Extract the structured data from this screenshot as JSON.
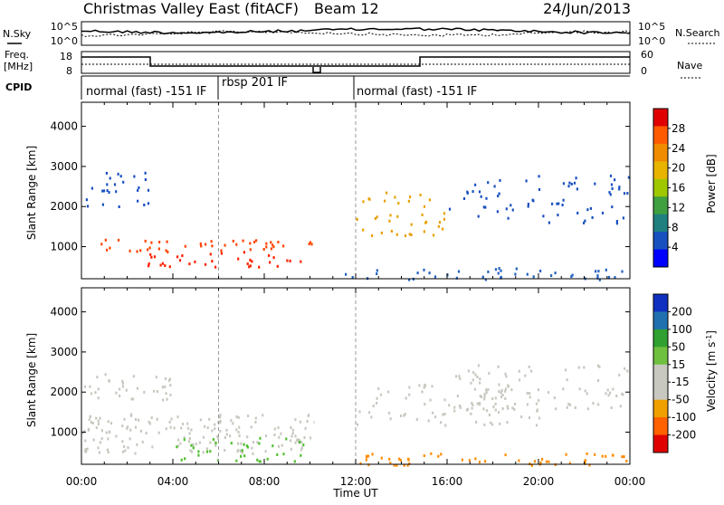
{
  "header": {
    "title": "Christmas Valley East (fitACF)",
    "beam": "Beam 12",
    "date": "24/Jun/2013"
  },
  "panels": {
    "nsky_label": "N.Sky",
    "nsky_ticks": [
      "10^5",
      "10^0"
    ],
    "nsearch_label": "N.Search",
    "nsearch_ticks": [
      "10^5",
      "10^0"
    ],
    "freq_label_1": "Freq.",
    "freq_label_2": "[MHz]",
    "freq_ticks": [
      "18",
      "8"
    ],
    "nave_label": "Nave",
    "nave_ticks": [
      "60",
      "0"
    ],
    "cpid_label": "CPID",
    "cpid_segments": [
      {
        "start_h": 0,
        "end_h": 6,
        "label": "normal (fast) -151 IF"
      },
      {
        "start_h": 6,
        "end_h": 12,
        "label": "rbsp 201 IF"
      },
      {
        "start_h": 12,
        "end_h": 24,
        "label": "normal (fast) -151 IF"
      }
    ]
  },
  "chart_data": [
    {
      "type": "heatmap",
      "name": "power",
      "ylabel": "Slant Range [km]",
      "yticks": [
        1000,
        2000,
        3000,
        4000
      ],
      "ylim": [
        200,
        4600
      ],
      "xlim": [
        0,
        24
      ],
      "colorbar_label": "Power [dB]",
      "colorbar_ticks": [
        "28",
        "24",
        "20",
        "16",
        "12",
        "8",
        "4"
      ],
      "colorbar_colors": [
        "#e00000",
        "#ff5a00",
        "#f08c00",
        "#e8b400",
        "#a0c800",
        "#40a040",
        "#208080",
        "#1850c0",
        "#0000ff"
      ],
      "bands": [
        {
          "x0": 0.6,
          "x1": 10.2,
          "y0": 900,
          "y1": 1200,
          "color": "#ff4500",
          "density": 0.55
        },
        {
          "x0": 2.8,
          "x1": 9.6,
          "y0": 500,
          "y1": 900,
          "color": "#ff2000",
          "density": 0.45
        },
        {
          "x0": 0,
          "x1": 3,
          "y0": 2000,
          "y1": 2900,
          "color": "#1850c0",
          "density": 0.35
        },
        {
          "x0": 12,
          "x1": 16,
          "y0": 1300,
          "y1": 2400,
          "color": "#e8a000",
          "density": 0.3
        },
        {
          "x0": 16,
          "x1": 24,
          "y0": 1600,
          "y1": 2800,
          "color": "#1850c0",
          "density": 0.25
        },
        {
          "x0": 11.5,
          "x1": 24,
          "y0": 200,
          "y1": 500,
          "color": "#2060c0",
          "density": 0.4
        }
      ]
    },
    {
      "type": "heatmap",
      "name": "velocity",
      "ylabel": "Slant Range [km]",
      "yticks": [
        1000,
        2000,
        3000,
        4000
      ],
      "ylim": [
        200,
        4600
      ],
      "xlim": [
        0,
        24
      ],
      "xlabel": "Time UT",
      "xticks": [
        "00:00",
        "04:00",
        "08:00",
        "12:00",
        "16:00",
        "20:00",
        "00:00"
      ],
      "colorbar_label": "Velocity [m s^-1]",
      "colorbar_ticks": [
        "200",
        "100",
        "50",
        "15",
        "-15",
        "-50",
        "-100",
        "-200"
      ],
      "colorbar_colors": [
        "#1030c0",
        "#2070b0",
        "#30a030",
        "#70c040",
        "#c8c8c0",
        "#c8c8c0",
        "#f0a000",
        "#ff6000",
        "#e00000"
      ],
      "bands": [
        {
          "x0": 0,
          "x1": 10.2,
          "y0": 500,
          "y1": 1500,
          "color": "#c8c8c0",
          "density": 0.6
        },
        {
          "x0": 0,
          "x1": 4,
          "y0": 1800,
          "y1": 2500,
          "color": "#c8c8c0",
          "density": 0.45
        },
        {
          "x0": 4,
          "x1": 10,
          "y0": 300,
          "y1": 900,
          "color": "#50c030",
          "density": 0.35
        },
        {
          "x0": 12,
          "x1": 24,
          "y0": 200,
          "y1": 500,
          "color": "#ff8c00",
          "density": 0.55
        },
        {
          "x0": 12,
          "x1": 20,
          "y0": 1200,
          "y1": 2300,
          "color": "#c8c8c0",
          "density": 0.35
        },
        {
          "x0": 16,
          "x1": 24,
          "y0": 1600,
          "y1": 2700,
          "color": "#c8c8c0",
          "density": 0.3
        }
      ]
    }
  ]
}
